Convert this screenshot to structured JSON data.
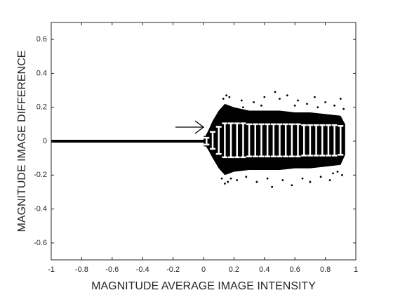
{
  "chart_data": {
    "type": "scatter",
    "xlabel": "MAGNITUDE AVERAGE IMAGE INTENSITY",
    "ylabel": "MAGNITUDE IMAGE DIFFERENCE",
    "xlim": [
      -1,
      1
    ],
    "ylim": [
      -0.7,
      0.7
    ],
    "xticks": [
      -1,
      -0.8,
      -0.6,
      -0.4,
      -0.2,
      0,
      0.2,
      0.4,
      0.6,
      0.8,
      1
    ],
    "yticks": [
      -0.6,
      -0.4,
      -0.2,
      0,
      0.2,
      0.4,
      0.6
    ],
    "color": "#000000",
    "line": {
      "x": [
        -1,
        0
      ],
      "values": [
        0,
        0
      ]
    },
    "band": {
      "x": [
        0,
        0.03,
        0.06,
        0.1,
        0.14,
        0.2,
        0.3,
        0.4,
        0.5,
        0.6,
        0.7,
        0.8,
        0.9,
        0.93
      ],
      "upper": [
        0.01,
        0.06,
        0.12,
        0.18,
        0.22,
        0.2,
        0.18,
        0.18,
        0.18,
        0.17,
        0.17,
        0.16,
        0.15,
        0.1
      ],
      "lower": [
        -0.01,
        -0.05,
        -0.1,
        -0.16,
        -0.2,
        -0.18,
        -0.17,
        -0.17,
        -0.17,
        -0.16,
        -0.16,
        -0.15,
        -0.14,
        -0.08
      ]
    },
    "points": {
      "x": [
        0.13,
        0.15,
        0.17,
        0.12,
        0.16,
        0.25,
        0.33,
        0.4,
        0.47,
        0.5,
        0.55,
        0.62,
        0.68,
        0.73,
        0.8,
        0.86,
        0.9,
        0.92,
        0.14,
        0.18,
        0.22,
        0.28,
        0.35,
        0.42,
        0.45,
        0.52,
        0.58,
        0.65,
        0.7,
        0.77,
        0.83,
        0.88,
        0.91,
        0.26,
        0.38,
        0.6,
        0.75,
        0.85
      ],
      "values": [
        0.25,
        0.27,
        0.26,
        -0.22,
        -0.24,
        0.24,
        0.23,
        0.26,
        0.29,
        0.25,
        0.27,
        0.24,
        0.22,
        0.26,
        0.23,
        0.21,
        0.25,
        0.19,
        -0.25,
        -0.22,
        -0.23,
        -0.21,
        -0.24,
        -0.22,
        -0.27,
        -0.23,
        -0.26,
        -0.22,
        -0.24,
        -0.21,
        -0.23,
        -0.18,
        -0.2,
        0.2,
        0.21,
        0.21,
        0.2,
        -0.19
      ]
    },
    "errorbars": {
      "x": [
        0.02,
        0.06,
        0.1,
        0.14,
        0.18,
        0.22,
        0.26,
        0.3,
        0.34,
        0.38,
        0.42,
        0.46,
        0.5,
        0.54,
        0.58,
        0.62,
        0.66,
        0.7,
        0.74,
        0.78,
        0.82,
        0.86,
        0.9
      ],
      "values": [
        0,
        0.005,
        0.005,
        0.005,
        0.005,
        0.005,
        0.005,
        0.005,
        0.005,
        0.005,
        0.005,
        0.005,
        0.005,
        0.005,
        0.005,
        0.005,
        0.005,
        0.005,
        0.005,
        0.005,
        0.005,
        0.005,
        0.005
      ],
      "errors": [
        0.02,
        0.05,
        0.08,
        0.1,
        0.1,
        0.1,
        0.1,
        0.095,
        0.095,
        0.095,
        0.095,
        0.095,
        0.095,
        0.095,
        0.095,
        0.095,
        0.09,
        0.09,
        0.09,
        0.09,
        0.09,
        0.09,
        0.085
      ],
      "color": "#ffffff"
    }
  }
}
